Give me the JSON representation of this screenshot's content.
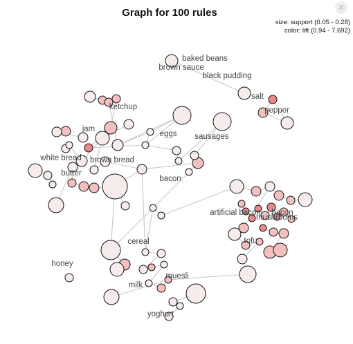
{
  "title": "Graph for 100 rules",
  "legend": {
    "size_text": "size: support (0.05 - 0.28)",
    "color_text": "color: lift (0.94 - 7.692)"
  },
  "colors": {
    "edge": "#c8c8c8",
    "node_stroke": "#111111",
    "low_lift": "#f6ecec",
    "mid_lift": "#f3bfbf",
    "high_lift": "#e78a8a"
  },
  "items": [
    {
      "id": "baked_beans",
      "label": "baked beans"
    },
    {
      "id": "brown_sauce",
      "label": "brown sauce"
    },
    {
      "id": "black_pudding",
      "label": "black pudding"
    },
    {
      "id": "salt",
      "label": "salt"
    },
    {
      "id": "pepper",
      "label": "pepper"
    },
    {
      "id": "ketchup",
      "label": "ketchup"
    },
    {
      "id": "jam",
      "label": "jam"
    },
    {
      "id": "eggs",
      "label": "eggs"
    },
    {
      "id": "sausages",
      "label": "sausages"
    },
    {
      "id": "white_bread",
      "label": "white bread"
    },
    {
      "id": "brown_bread",
      "label": "brown bread"
    },
    {
      "id": "butter",
      "label": "butter"
    },
    {
      "id": "bacon",
      "label": "bacon"
    },
    {
      "id": "artificial_bacon",
      "label": "artificial bacon"
    },
    {
      "id": "bacon2",
      "label": "bacon"
    },
    {
      "id": "mushrooms",
      "label": "mushrooms"
    },
    {
      "id": "tofu",
      "label": "tofu"
    },
    {
      "id": "cereal",
      "label": "cereal"
    },
    {
      "id": "honey",
      "label": "honey"
    },
    {
      "id": "muesli",
      "label": "muesli"
    },
    {
      "id": "milk",
      "label": "milk"
    },
    {
      "id": "yoghurt",
      "label": "yoghurt"
    }
  ]
}
